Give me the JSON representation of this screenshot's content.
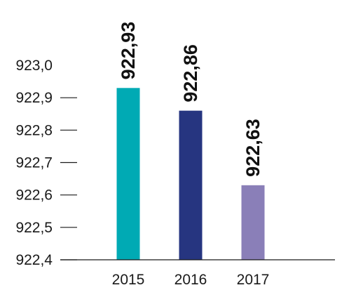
{
  "chart_data": {
    "type": "bar",
    "categories": [
      "2015",
      "2016",
      "2017"
    ],
    "values": [
      922.93,
      922.86,
      922.63
    ],
    "value_labels": [
      "922,93",
      "922,86",
      "922,63"
    ],
    "colors": [
      "#00aab4",
      "#263580",
      "#8a7fb8"
    ],
    "yticks": [
      922.4,
      922.5,
      922.6,
      922.7,
      922.8,
      922.9,
      923.0
    ],
    "ytick_labels": [
      "922,4",
      "922,5",
      "922,6",
      "922,7",
      "922,8",
      "922,9",
      "923,0"
    ],
    "ylim": [
      922.4,
      923.0
    ],
    "grid": false,
    "title": "",
    "xlabel": "",
    "ylabel": ""
  }
}
